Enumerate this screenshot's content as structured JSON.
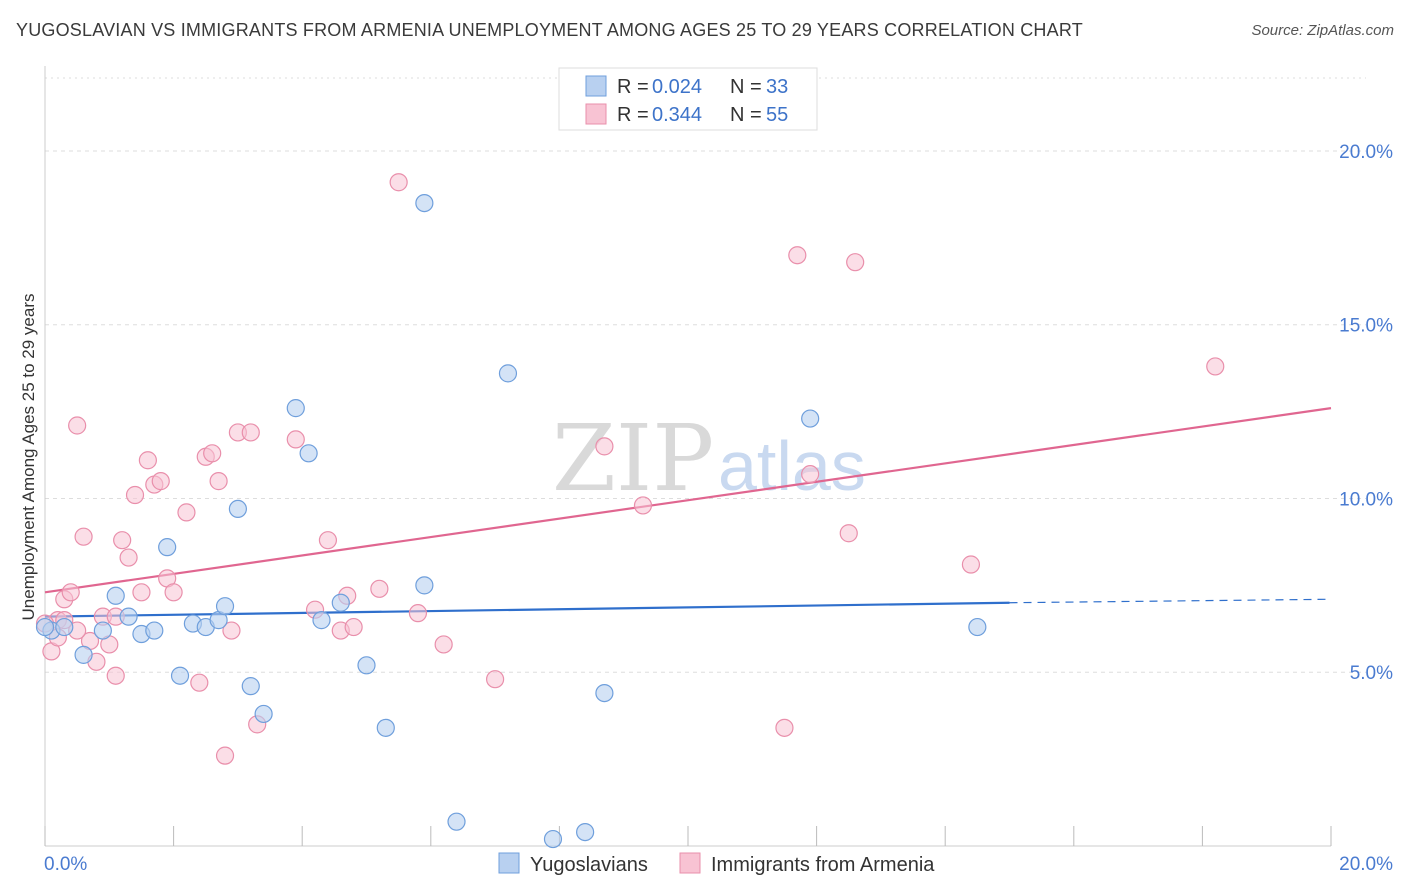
{
  "header": {
    "title": "YUGOSLAVIAN VS IMMIGRANTS FROM ARMENIA UNEMPLOYMENT AMONG AGES 25 TO 29 YEARS CORRELATION CHART",
    "source": "Source: ZipAtlas.com"
  },
  "watermark": {
    "part1": "ZIP",
    "part2": "atlas"
  },
  "legend_top": {
    "rows": [
      {
        "r_label": "R = ",
        "r_value": "0.024",
        "n_label": "N = ",
        "n_value": "33"
      },
      {
        "r_label": "R = ",
        "r_value": "0.344",
        "n_label": "N = ",
        "n_value": "55"
      }
    ]
  },
  "legend_bottom": {
    "series1": "Yugoslavians",
    "series2": "Immigrants from Armenia"
  },
  "colors": {
    "series1_fill": "#b8d0f0",
    "series1_stroke": "#6f9fdc",
    "series1_line": "#2f6fcc",
    "series2_fill": "#f8c3d3",
    "series2_stroke": "#e98fab",
    "series2_line": "#e06690",
    "grid": "#dddddd",
    "tick_text": "#4a7bd0"
  },
  "chart_data": {
    "type": "scatter",
    "title": "YUGOSLAVIAN VS IMMIGRANTS FROM ARMENIA UNEMPLOYMENT AMONG AGES 25 TO 29 YEARS CORRELATION CHART",
    "xlabel": "",
    "ylabel": "Unemployment Among Ages 25 to 29 years",
    "xlim": [
      0,
      20
    ],
    "ylim": [
      0,
      20
    ],
    "x_tick_labels": [
      "0.0%",
      "20.0%"
    ],
    "y_tick_labels": [
      "5.0%",
      "10.0%",
      "15.0%",
      "20.0%"
    ],
    "y_ticks": [
      5,
      10,
      15,
      20
    ],
    "grid": "horizontal dashed",
    "legend": "top-center",
    "series": [
      {
        "name": "Yugoslavians",
        "r": 0.024,
        "n": 33,
        "trend": {
          "x0": 0,
          "y0": 6.6,
          "x1": 15,
          "y1": 7.0,
          "dashed_to_x": 20,
          "dashed_to_y": 7.1
        },
        "points": [
          [
            0.1,
            6.2
          ],
          [
            0.3,
            6.3
          ],
          [
            0.6,
            5.5
          ],
          [
            0.9,
            6.2
          ],
          [
            1.1,
            7.2
          ],
          [
            1.3,
            6.6
          ],
          [
            1.5,
            6.1
          ],
          [
            1.7,
            6.2
          ],
          [
            1.9,
            8.6
          ],
          [
            2.1,
            4.9
          ],
          [
            2.3,
            6.4
          ],
          [
            2.5,
            6.3
          ],
          [
            2.7,
            6.5
          ],
          [
            2.8,
            6.9
          ],
          [
            3.0,
            9.7
          ],
          [
            3.2,
            4.6
          ],
          [
            3.4,
            3.8
          ],
          [
            3.9,
            12.6
          ],
          [
            4.1,
            11.3
          ],
          [
            4.3,
            6.5
          ],
          [
            4.6,
            7.0
          ],
          [
            5.0,
            5.2
          ],
          [
            5.3,
            3.4
          ],
          [
            5.9,
            7.5
          ],
          [
            5.9,
            18.5
          ],
          [
            6.4,
            0.7
          ],
          [
            7.2,
            13.6
          ],
          [
            7.9,
            0.2
          ],
          [
            8.4,
            0.4
          ],
          [
            8.7,
            4.4
          ],
          [
            11.9,
            12.3
          ],
          [
            14.5,
            6.3
          ],
          [
            0.0,
            6.3
          ]
        ]
      },
      {
        "name": "Immigrants from Armenia",
        "r": 0.344,
        "n": 55,
        "trend": {
          "x0": 0,
          "y0": 7.3,
          "x1": 20,
          "y1": 12.6
        },
        "points": [
          [
            0.1,
            5.6
          ],
          [
            0.2,
            6.5
          ],
          [
            0.3,
            7.1
          ],
          [
            0.4,
            7.3
          ],
          [
            0.5,
            12.1
          ],
          [
            0.6,
            8.9
          ],
          [
            0.7,
            5.9
          ],
          [
            0.8,
            5.3
          ],
          [
            0.9,
            6.6
          ],
          [
            1.0,
            5.8
          ],
          [
            1.1,
            4.9
          ],
          [
            1.2,
            8.8
          ],
          [
            1.3,
            8.3
          ],
          [
            1.4,
            10.1
          ],
          [
            1.5,
            7.3
          ],
          [
            1.6,
            11.1
          ],
          [
            1.7,
            10.4
          ],
          [
            1.8,
            10.5
          ],
          [
            1.9,
            7.7
          ],
          [
            2.0,
            7.3
          ],
          [
            2.2,
            9.6
          ],
          [
            2.4,
            4.7
          ],
          [
            2.5,
            11.2
          ],
          [
            2.6,
            11.3
          ],
          [
            2.7,
            10.5
          ],
          [
            2.8,
            2.6
          ],
          [
            2.9,
            6.2
          ],
          [
            3.0,
            11.9
          ],
          [
            3.2,
            11.9
          ],
          [
            3.3,
            3.5
          ],
          [
            3.9,
            11.7
          ],
          [
            4.2,
            6.8
          ],
          [
            4.4,
            8.8
          ],
          [
            4.6,
            6.2
          ],
          [
            4.7,
            7.2
          ],
          [
            4.8,
            6.3
          ],
          [
            5.2,
            7.4
          ],
          [
            5.5,
            19.1
          ],
          [
            5.8,
            6.7
          ],
          [
            6.2,
            5.8
          ],
          [
            7.0,
            4.8
          ],
          [
            8.7,
            11.5
          ],
          [
            9.3,
            9.8
          ],
          [
            11.5,
            3.4
          ],
          [
            11.7,
            17.0
          ],
          [
            11.9,
            10.7
          ],
          [
            12.5,
            9.0
          ],
          [
            12.6,
            16.8
          ],
          [
            14.4,
            8.1
          ],
          [
            18.2,
            13.8
          ],
          [
            0.0,
            6.4
          ],
          [
            0.2,
            6.0
          ],
          [
            0.5,
            6.2
          ],
          [
            1.1,
            6.6
          ],
          [
            0.3,
            6.5
          ]
        ]
      }
    ]
  },
  "axis": {
    "ylabel": "Unemployment Among Ages 25 to 29 years"
  }
}
